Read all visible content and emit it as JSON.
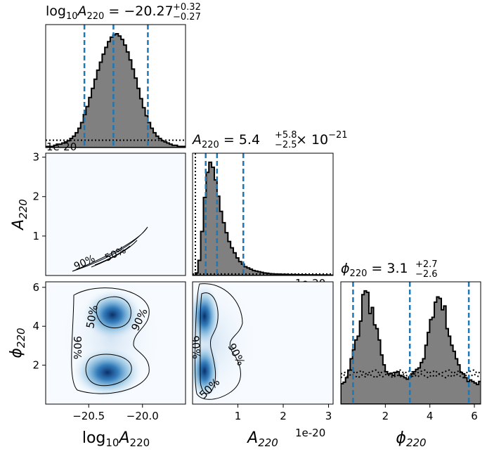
{
  "chart_data": {
    "type": "corner",
    "parameters": [
      {
        "key": "logA",
        "label_main": "log",
        "label_sub": "10",
        "label_var": "A",
        "label_var_sub": "220"
      },
      {
        "key": "A",
        "label_var": "A",
        "label_var_sub": "220",
        "offset_text": "1e-20"
      },
      {
        "key": "phi",
        "label_var": "ϕ",
        "label_var_sub": "220"
      }
    ],
    "titles": [
      {
        "lhs": "log",
        "lhs_sub": "10",
        "var": "A",
        "var_sub": "220",
        "median": "−20.27",
        "plus": "+0.32",
        "minus": "−0.27",
        "suffix": ""
      },
      {
        "lhs": "",
        "lhs_sub": "",
        "var": "A",
        "var_sub": "220",
        "median": "5.4",
        "plus": "+5.8",
        "minus": "−2.5",
        "suffix": "× 10",
        "suffix_exp": "−21"
      },
      {
        "lhs": "",
        "lhs_sub": "",
        "var": "ϕ",
        "var_sub": "220",
        "median": "3.1",
        "plus": "+2.7",
        "minus": "−2.6",
        "suffix": ""
      }
    ],
    "axes": {
      "logA": {
        "range": [
          -20.9,
          -19.6
        ],
        "ticks": [
          -20.5,
          -20.0
        ],
        "tick_labels": [
          "−20.5",
          "−20.0"
        ]
      },
      "A": {
        "range": [
          0.0,
          3.1
        ],
        "ticks": [
          1,
          2,
          3
        ],
        "tick_labels": [
          "1",
          "2",
          "3"
        ],
        "unit_exp": "1e-20"
      },
      "phi": {
        "range": [
          0.0,
          6.283
        ],
        "ticks": [
          2,
          4,
          6
        ],
        "tick_labels": [
          "2",
          "4",
          "6"
        ]
      }
    },
    "diagonal": [
      {
        "param": "logA",
        "quantiles": [
          -20.54,
          -20.27,
          -19.95
        ],
        "prior_level": 0.065,
        "hist_edges_start": -20.9,
        "hist_bin_width": 0.025,
        "hist_counts": [
          0.01,
          0.01,
          0.01,
          0.02,
          0.03,
          0.03,
          0.04,
          0.05,
          0.06,
          0.08,
          0.1,
          0.13,
          0.17,
          0.22,
          0.29,
          0.36,
          0.44,
          0.52,
          0.6,
          0.68,
          0.75,
          0.82,
          0.88,
          0.93,
          0.97,
          0.99,
          1.0,
          0.98,
          0.95,
          0.9,
          0.84,
          0.77,
          0.69,
          0.61,
          0.52,
          0.43,
          0.35,
          0.28,
          0.22,
          0.17,
          0.13,
          0.1,
          0.08,
          0.06,
          0.05,
          0.04,
          0.03,
          0.02,
          0.02,
          0.01,
          0.01,
          0.01
        ]
      },
      {
        "param": "A",
        "quantiles": [
          0.29,
          0.54,
          1.12
        ],
        "prior_level": 0.012,
        "hist_edges_start": 0.0,
        "hist_bin_width": 0.06,
        "hist_counts": [
          0.0,
          0.02,
          0.12,
          0.35,
          0.62,
          0.82,
          0.9,
          0.86,
          0.76,
          0.63,
          0.51,
          0.42,
          0.34,
          0.27,
          0.22,
          0.18,
          0.14,
          0.11,
          0.09,
          0.07,
          0.06,
          0.05,
          0.04,
          0.035,
          0.03,
          0.025,
          0.02,
          0.018,
          0.015,
          0.013,
          0.012,
          0.011,
          0.01,
          0.01,
          0.009,
          0.008,
          0.008,
          0.007,
          0.007,
          0.006,
          0.006,
          0.006,
          0.005,
          0.005,
          0.005,
          0.005,
          0.004,
          0.004,
          0.004,
          0.004,
          0.003,
          0.003
        ]
      },
      {
        "param": "phi",
        "quantiles": [
          0.55,
          3.1,
          5.75
        ],
        "prior_level": 0.43,
        "hist_edges_start": 0.0,
        "hist_bin_width": 0.105,
        "hist_counts": [
          0.27,
          0.29,
          0.35,
          0.45,
          0.6,
          0.72,
          0.85,
          0.9,
          1.1,
          1.45,
          1.5,
          1.48,
          1.2,
          1.28,
          1.05,
          1.0,
          0.85,
          0.65,
          0.52,
          0.43,
          0.4,
          0.41,
          0.38,
          0.42,
          0.43,
          0.38,
          0.37,
          0.35,
          0.33,
          0.36,
          0.4,
          0.43,
          0.46,
          0.48,
          0.55,
          0.6,
          0.78,
          0.95,
          1.12,
          1.15,
          1.35,
          1.42,
          1.4,
          1.25,
          1.3,
          1.0,
          0.9,
          0.78,
          0.7,
          0.6,
          0.52,
          0.42,
          0.4,
          0.35,
          0.3,
          0.32,
          0.3,
          0.28,
          0.26,
          0.3
        ]
      }
    ],
    "contours": {
      "levels": [
        "50%",
        "90%"
      ],
      "A_vs_logA": {
        "label_positions": [
          "90%",
          "50%"
        ]
      },
      "phi_vs_logA": {
        "blobs": [
          {
            "x": -20.22,
            "y": 4.55
          },
          {
            "x": -20.28,
            "y": 1.5
          }
        ],
        "labels": [
          "50%",
          "90%",
          "90%"
        ]
      },
      "phi_vs_A": {
        "blobs": [
          {
            "x": 0.2,
            "y": 4.5
          },
          {
            "x": 0.2,
            "y": 1.5
          }
        ],
        "labels": [
          "90%",
          "90%",
          "50%"
        ]
      }
    },
    "colors": {
      "hist_fill": "#808080",
      "hist_edge": "#000000",
      "quantile": "#1f77b4",
      "density_high": "#08306b",
      "density_low": "#f7fbff"
    }
  }
}
